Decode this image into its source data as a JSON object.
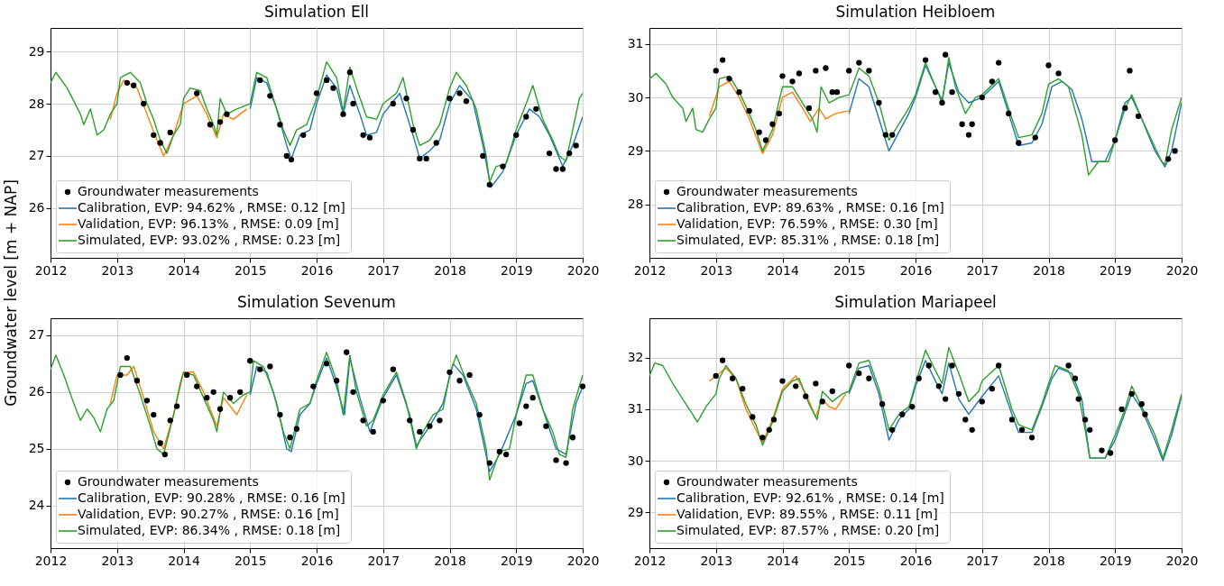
{
  "chart_data": [
    {
      "type": "line",
      "title": "Simulation Ell",
      "ylabel": "Groundwater level [m + NAP]",
      "xlim": [
        2012,
        2020
      ],
      "xticks": [
        2012,
        2013,
        2014,
        2015,
        2016,
        2017,
        2018,
        2019,
        2020
      ],
      "ylim": [
        25.05,
        29.45
      ],
      "yticks": [
        26,
        27,
        28,
        29
      ],
      "grid": true,
      "legend": "bottom left",
      "series": [
        {
          "name": "Groundwater measurements",
          "type": "scatter",
          "marker": "circle",
          "color": "#000000",
          "x": [
            2013.15,
            2013.25,
            2013.4,
            2013.55,
            2013.65,
            2013.8,
            2014.2,
            2014.4,
            2014.55,
            2014.65,
            2015.15,
            2015.3,
            2015.45,
            2015.55,
            2015.62,
            2015.8,
            2016.0,
            2016.15,
            2016.25,
            2016.4,
            2016.5,
            2016.55,
            2016.7,
            2016.8,
            2017.15,
            2017.35,
            2017.45,
            2017.55,
            2017.65,
            2017.8,
            2018.0,
            2018.15,
            2018.25,
            2018.5,
            2018.6,
            2018.8,
            2019.0,
            2019.15,
            2019.3,
            2019.5,
            2019.6,
            2019.7,
            2019.8,
            2019.9
          ],
          "values": [
            28.4,
            28.35,
            28.0,
            27.4,
            27.25,
            27.45,
            28.2,
            27.6,
            27.65,
            27.8,
            28.45,
            28.15,
            27.6,
            27.0,
            26.93,
            27.4,
            28.2,
            28.45,
            28.3,
            27.8,
            28.6,
            28.0,
            27.4,
            27.35,
            28.0,
            28.1,
            27.5,
            26.95,
            26.95,
            27.25,
            28.1,
            28.2,
            28.05,
            27.0,
            26.45,
            26.8,
            27.4,
            27.75,
            27.9,
            27.05,
            26.75,
            26.75,
            27.05,
            27.2
          ]
        },
        {
          "name": "Calibration, EVP: 94.62% , RMSE: 0.12 [m]",
          "color": "#1f77b4",
          "x": [
            2015.0,
            2015.1,
            2015.25,
            2015.4,
            2015.55,
            2015.62,
            2015.75,
            2015.9,
            2016.0,
            2016.15,
            2016.3,
            2016.4,
            2016.5,
            2016.65,
            2016.75,
            2016.9,
            2017.0,
            2017.25,
            2017.45,
            2017.55,
            2017.7,
            2017.85,
            2018.0,
            2018.15,
            2018.35,
            2018.5,
            2018.62,
            2018.8,
            2019.0,
            2019.2,
            2019.35,
            2019.5,
            2019.7,
            2019.85,
            2020.0
          ],
          "values": [
            27.9,
            28.5,
            28.4,
            27.9,
            27.2,
            26.95,
            27.4,
            27.5,
            28.0,
            28.55,
            28.3,
            27.8,
            28.35,
            27.8,
            27.4,
            27.45,
            27.8,
            28.2,
            27.4,
            26.95,
            27.1,
            27.3,
            28.0,
            28.35,
            28.05,
            27.2,
            26.4,
            26.7,
            27.4,
            27.9,
            27.75,
            27.4,
            26.8,
            27.2,
            27.75
          ]
        },
        {
          "name": "Validation, EVP: 96.13% , RMSE: 0.09 [m]",
          "color": "#ff7f0e",
          "x": [
            2012.9,
            2013.0,
            2013.1,
            2013.3,
            2013.45,
            2013.6,
            2013.7,
            2013.85,
            2014.0,
            2014.2,
            2014.35,
            2014.5,
            2014.6,
            2014.75,
            2014.95
          ],
          "values": [
            27.7,
            28.2,
            28.45,
            28.3,
            27.8,
            27.3,
            27.0,
            27.4,
            28.0,
            28.15,
            27.8,
            27.35,
            27.8,
            27.7,
            27.9
          ]
        },
        {
          "name": "Simulated, EVP: 93.02% , RMSE: 0.23 [m]",
          "color": "#2ca02c",
          "x": [
            2012.0,
            2012.08,
            2012.25,
            2012.35,
            2012.45,
            2012.5,
            2012.6,
            2012.7,
            2012.8,
            2012.9,
            2013.0,
            2013.05,
            2013.2,
            2013.35,
            2013.45,
            2013.55,
            2013.65,
            2013.75,
            2013.85,
            2013.95,
            2014.0,
            2014.1,
            2014.25,
            2014.35,
            2014.45,
            2014.5,
            2014.55,
            2014.65,
            2014.8,
            2015.0,
            2015.1,
            2015.25,
            2015.35,
            2015.5,
            2015.6,
            2015.7,
            2015.85,
            2016.0,
            2016.15,
            2016.3,
            2016.4,
            2016.5,
            2016.6,
            2016.75,
            2016.9,
            2017.0,
            2017.2,
            2017.3,
            2017.45,
            2017.55,
            2017.7,
            2017.85,
            2018.0,
            2018.1,
            2018.25,
            2018.4,
            2018.55,
            2018.6,
            2018.7,
            2018.85,
            2019.0,
            2019.15,
            2019.25,
            2019.4,
            2019.55,
            2019.65,
            2019.75,
            2019.85,
            2019.95,
            2020.0
          ],
          "values": [
            28.4,
            28.6,
            28.3,
            28.05,
            27.8,
            27.6,
            27.9,
            27.4,
            27.5,
            27.8,
            28.0,
            28.5,
            28.6,
            28.4,
            28.0,
            27.7,
            27.3,
            27.05,
            27.4,
            27.6,
            28.1,
            28.3,
            28.25,
            27.9,
            27.6,
            27.4,
            28.1,
            27.8,
            27.9,
            28.0,
            28.6,
            28.5,
            28.1,
            27.5,
            27.2,
            27.5,
            27.6,
            28.1,
            28.8,
            28.5,
            27.85,
            28.7,
            28.3,
            27.75,
            27.7,
            28.0,
            28.2,
            28.5,
            27.6,
            27.2,
            27.3,
            27.6,
            28.3,
            28.6,
            28.35,
            27.9,
            27.0,
            26.5,
            26.8,
            26.85,
            27.5,
            28.0,
            28.35,
            27.7,
            27.3,
            27.0,
            26.9,
            27.5,
            28.1,
            28.2
          ]
        }
      ]
    },
    {
      "type": "line",
      "title": "Simulation Heibloem",
      "xlim": [
        2012,
        2020
      ],
      "xticks": [
        2012,
        2013,
        2014,
        2015,
        2016,
        2017,
        2018,
        2019,
        2020
      ],
      "ylim": [
        27.0,
        31.3
      ],
      "yticks": [
        28,
        29,
        30,
        31
      ],
      "grid": true,
      "legend": "bottom left",
      "series": [
        {
          "name": "Groundwater measurements",
          "type": "scatter",
          "marker": "circle",
          "color": "#000000",
          "x": [
            2013.0,
            2013.1,
            2013.2,
            2013.35,
            2013.5,
            2013.65,
            2013.75,
            2013.85,
            2013.95,
            2014.0,
            2014.15,
            2014.25,
            2014.4,
            2014.5,
            2014.65,
            2014.75,
            2014.82,
            2015.0,
            2015.15,
            2015.3,
            2015.45,
            2015.55,
            2015.65,
            2016.15,
            2016.3,
            2016.4,
            2016.45,
            2016.55,
            2016.7,
            2016.8,
            2016.85,
            2017.0,
            2017.15,
            2017.25,
            2017.4,
            2017.55,
            2017.8,
            2018.0,
            2018.15,
            2019.0,
            2019.15,
            2019.22,
            2019.35,
            2019.8,
            2019.9
          ],
          "values": [
            30.5,
            30.7,
            30.35,
            30.1,
            29.75,
            29.35,
            29.2,
            29.5,
            29.7,
            30.4,
            30.3,
            30.45,
            29.8,
            30.5,
            30.55,
            30.1,
            30.1,
            30.5,
            30.65,
            30.5,
            29.9,
            29.3,
            29.3,
            30.7,
            30.1,
            29.9,
            30.8,
            30.1,
            29.5,
            29.3,
            29.5,
            30.0,
            30.3,
            30.65,
            29.7,
            29.15,
            29.25,
            30.6,
            30.45,
            29.2,
            29.8,
            30.5,
            29.65,
            28.85,
            29.0
          ]
        },
        {
          "name": "Calibration, EVP: 89.63% , RMSE: 0.16 [m]",
          "color": "#1f77b4",
          "x": [
            2015.0,
            2015.15,
            2015.3,
            2015.45,
            2015.6,
            2015.75,
            2015.9,
            2016.0,
            2016.15,
            2016.3,
            2016.4,
            2016.5,
            2016.65,
            2016.8,
            2017.0,
            2017.25,
            2017.45,
            2017.55,
            2017.75,
            2017.9,
            2018.05,
            2018.2,
            2018.35,
            2018.5,
            2018.65,
            2018.85,
            2019.0,
            2019.15,
            2019.25,
            2019.4,
            2019.6,
            2019.75,
            2019.85,
            2020.0
          ],
          "values": [
            29.7,
            30.35,
            30.2,
            29.6,
            29.0,
            29.35,
            29.7,
            30.0,
            30.6,
            30.2,
            29.95,
            30.65,
            30.1,
            29.9,
            30.0,
            30.3,
            29.5,
            29.1,
            29.15,
            29.5,
            30.2,
            30.3,
            30.15,
            29.6,
            28.8,
            28.8,
            29.2,
            29.9,
            30.0,
            29.6,
            29.0,
            28.7,
            29.0,
            29.9
          ]
        },
        {
          "name": "Validation, EVP: 76.59% , RMSE: 0.30 [m]",
          "color": "#ff7f0e",
          "x": [
            2012.9,
            2013.05,
            2013.2,
            2013.35,
            2013.5,
            2013.7,
            2013.85,
            2014.0,
            2014.15,
            2014.3,
            2014.42,
            2014.55,
            2014.65,
            2014.8,
            2015.0
          ],
          "values": [
            29.65,
            30.2,
            30.3,
            30.0,
            29.6,
            28.95,
            29.3,
            30.0,
            30.1,
            29.8,
            29.55,
            29.8,
            29.6,
            29.7,
            29.75
          ]
        },
        {
          "name": "Simulated, EVP: 85.31% , RMSE: 0.18 [m]",
          "color": "#2ca02c",
          "x": [
            2012.0,
            2012.1,
            2012.25,
            2012.35,
            2012.5,
            2012.55,
            2012.65,
            2012.7,
            2012.8,
            2012.9,
            2013.0,
            2013.05,
            2013.2,
            2013.35,
            2013.5,
            2013.6,
            2013.7,
            2013.85,
            2014.0,
            2014.15,
            2014.3,
            2014.45,
            2014.52,
            2014.58,
            2014.7,
            2014.85,
            2015.0,
            2015.15,
            2015.3,
            2015.45,
            2015.6,
            2015.75,
            2015.9,
            2016.0,
            2016.15,
            2016.3,
            2016.4,
            2016.5,
            2016.6,
            2016.75,
            2016.9,
            2017.0,
            2017.25,
            2017.45,
            2017.55,
            2017.75,
            2017.9,
            2018.0,
            2018.15,
            2018.3,
            2018.5,
            2018.6,
            2018.75,
            2018.9,
            2019.0,
            2019.15,
            2019.25,
            2019.4,
            2019.55,
            2019.7,
            2019.75,
            2019.85,
            2020.0
          ],
          "values": [
            30.35,
            30.45,
            30.25,
            30.0,
            29.8,
            29.55,
            29.8,
            29.4,
            29.35,
            29.6,
            29.8,
            30.35,
            30.4,
            30.1,
            29.7,
            29.4,
            29.0,
            29.4,
            30.2,
            30.2,
            29.9,
            29.6,
            29.35,
            30.2,
            29.9,
            30.0,
            30.05,
            30.55,
            30.4,
            29.9,
            29.2,
            29.5,
            29.8,
            30.05,
            30.65,
            30.2,
            29.9,
            30.75,
            30.2,
            29.7,
            30.0,
            30.05,
            30.35,
            29.6,
            29.25,
            29.3,
            29.7,
            30.25,
            30.35,
            30.2,
            29.3,
            28.55,
            28.8,
            28.8,
            29.2,
            29.8,
            30.05,
            29.6,
            29.2,
            28.8,
            28.75,
            29.4,
            30.0
          ]
        }
      ]
    },
    {
      "type": "line",
      "title": "Simulation Sevenum",
      "xlim": [
        2012,
        2020
      ],
      "xticks": [
        2012,
        2013,
        2014,
        2015,
        2016,
        2017,
        2018,
        2019,
        2020
      ],
      "ylim": [
        23.25,
        27.3
      ],
      "yticks": [
        24,
        25,
        26,
        27
      ],
      "grid": true,
      "legend": "bottom left",
      "series": [
        {
          "name": "Groundwater measurements",
          "type": "scatter",
          "marker": "circle",
          "color": "#000000",
          "x": [
            2013.05,
            2013.15,
            2013.3,
            2013.45,
            2013.55,
            2013.65,
            2013.72,
            2013.8,
            2013.9,
            2014.05,
            2014.2,
            2014.35,
            2014.45,
            2014.55,
            2014.7,
            2014.85,
            2015.0,
            2015.15,
            2015.3,
            2015.45,
            2015.6,
            2015.7,
            2015.95,
            2016.15,
            2016.3,
            2016.45,
            2016.55,
            2016.7,
            2016.85,
            2017.0,
            2017.15,
            2017.4,
            2017.55,
            2017.7,
            2017.85,
            2018.0,
            2018.15,
            2018.3,
            2018.45,
            2018.6,
            2018.75,
            2018.85,
            2019.05,
            2019.15,
            2019.25,
            2019.45,
            2019.6,
            2019.75,
            2019.85,
            2020.0
          ],
          "values": [
            26.3,
            26.6,
            26.2,
            25.85,
            25.6,
            25.1,
            24.9,
            25.5,
            25.75,
            26.3,
            26.1,
            25.9,
            26.0,
            25.7,
            25.9,
            26.0,
            26.55,
            26.4,
            26.45,
            25.6,
            25.2,
            25.35,
            26.1,
            26.5,
            26.2,
            26.7,
            26.0,
            25.5,
            25.3,
            25.85,
            26.4,
            25.5,
            25.3,
            25.4,
            25.5,
            26.35,
            26.2,
            26.3,
            25.6,
            24.75,
            24.95,
            24.9,
            25.45,
            25.75,
            25.9,
            25.4,
            24.8,
            24.75,
            25.2,
            26.1
          ]
        },
        {
          "name": "Calibration, EVP: 90.28% , RMSE: 0.16 [m]",
          "color": "#1f77b4",
          "x": [
            2015.0,
            2015.1,
            2015.25,
            2015.4,
            2015.55,
            2015.62,
            2015.75,
            2015.9,
            2016.0,
            2016.15,
            2016.3,
            2016.42,
            2016.5,
            2016.65,
            2016.8,
            2017.0,
            2017.2,
            2017.4,
            2017.5,
            2017.7,
            2017.9,
            2018.05,
            2018.2,
            2018.4,
            2018.6,
            2018.75,
            2019.0,
            2019.15,
            2019.25,
            2019.4,
            2019.6,
            2019.75,
            2019.9,
            2020.0
          ],
          "values": [
            25.95,
            26.45,
            26.35,
            25.8,
            25.0,
            24.95,
            25.6,
            25.8,
            26.15,
            26.6,
            26.1,
            25.6,
            26.6,
            25.9,
            25.3,
            25.9,
            26.3,
            25.6,
            25.05,
            25.4,
            25.8,
            26.5,
            26.3,
            25.7,
            24.6,
            24.9,
            25.6,
            26.15,
            26.2,
            25.7,
            25.0,
            24.9,
            25.8,
            26.1
          ]
        },
        {
          "name": "Validation, EVP: 90.27% , RMSE: 0.16 [m]",
          "color": "#ff7f0e",
          "x": [
            2012.9,
            2013.0,
            2013.15,
            2013.25,
            2013.4,
            2013.55,
            2013.7,
            2013.85,
            2014.0,
            2014.15,
            2014.3,
            2014.5,
            2014.6,
            2014.8,
            2014.95
          ],
          "values": [
            25.8,
            26.3,
            26.3,
            26.45,
            25.9,
            25.3,
            25.0,
            25.6,
            26.35,
            26.35,
            26.0,
            25.4,
            25.9,
            25.6,
            25.95
          ]
        },
        {
          "name": "Simulated, EVP: 86.34% , RMSE: 0.18 [m]",
          "color": "#2ca02c",
          "x": [
            2012.0,
            2012.08,
            2012.2,
            2012.35,
            2012.45,
            2012.55,
            2012.65,
            2012.75,
            2012.85,
            2012.95,
            2013.05,
            2013.2,
            2013.35,
            2013.5,
            2013.6,
            2013.7,
            2013.85,
            2013.95,
            2014.0,
            2014.15,
            2014.3,
            2014.45,
            2014.5,
            2014.6,
            2014.75,
            2014.9,
            2015.0,
            2015.05,
            2015.2,
            2015.35,
            2015.5,
            2015.6,
            2015.75,
            2015.9,
            2016.0,
            2016.15,
            2016.3,
            2016.4,
            2016.5,
            2016.6,
            2016.75,
            2016.85,
            2017.0,
            2017.2,
            2017.35,
            2017.5,
            2017.6,
            2017.75,
            2017.9,
            2018.0,
            2018.1,
            2018.25,
            2018.4,
            2018.55,
            2018.6,
            2018.75,
            2018.9,
            2019.0,
            2019.15,
            2019.25,
            2019.4,
            2019.55,
            2019.65,
            2019.75,
            2019.85,
            2020.0
          ],
          "values": [
            26.4,
            26.65,
            26.3,
            25.8,
            25.5,
            25.7,
            25.55,
            25.3,
            25.7,
            25.85,
            26.45,
            26.45,
            25.95,
            25.4,
            25.0,
            24.9,
            25.6,
            26.15,
            26.35,
            26.3,
            25.9,
            25.5,
            25.3,
            26.0,
            25.8,
            25.95,
            26.0,
            26.55,
            26.45,
            26.0,
            25.3,
            25.0,
            25.7,
            25.8,
            26.2,
            26.7,
            26.2,
            25.6,
            26.65,
            26.0,
            25.4,
            25.5,
            25.95,
            26.35,
            25.8,
            25.0,
            25.3,
            25.6,
            25.7,
            26.3,
            26.65,
            26.2,
            25.8,
            25.0,
            24.45,
            24.95,
            25.0,
            25.6,
            26.3,
            26.3,
            25.7,
            25.3,
            24.9,
            24.85,
            25.7,
            26.3
          ]
        }
      ]
    },
    {
      "type": "line",
      "title": "Simulation Mariapeel",
      "xlim": [
        2012,
        2020
      ],
      "xticks": [
        2012,
        2013,
        2014,
        2015,
        2016,
        2017,
        2018,
        2019,
        2020
      ],
      "ylim": [
        28.3,
        32.77
      ],
      "yticks": [
        29,
        30,
        31,
        32
      ],
      "grid": true,
      "legend": "bottom left",
      "series": [
        {
          "name": "Groundwater measurements",
          "type": "scatter",
          "marker": "circle",
          "color": "#000000",
          "x": [
            2013.0,
            2013.1,
            2013.25,
            2013.4,
            2013.55,
            2013.7,
            2013.8,
            2013.87,
            2014.0,
            2014.2,
            2014.35,
            2014.5,
            2014.6,
            2014.75,
            2015.0,
            2015.15,
            2015.3,
            2015.5,
            2015.65,
            2015.8,
            2015.95,
            2016.05,
            2016.2,
            2016.35,
            2016.45,
            2016.55,
            2016.65,
            2016.75,
            2016.85,
            2017.0,
            2017.15,
            2017.25,
            2017.45,
            2017.6,
            2017.75,
            2018.3,
            2018.4,
            2018.45,
            2018.55,
            2018.62,
            2018.8,
            2018.93,
            2019.1,
            2019.25,
            2019.4,
            2019.45
          ],
          "values": [
            31.65,
            31.95,
            31.6,
            31.4,
            30.85,
            30.45,
            30.6,
            30.8,
            31.55,
            31.45,
            31.25,
            31.5,
            31.15,
            31.35,
            31.85,
            31.7,
            31.6,
            31.1,
            30.6,
            30.9,
            31.05,
            31.6,
            31.85,
            31.45,
            31.2,
            31.85,
            31.3,
            30.8,
            30.6,
            31.15,
            31.4,
            31.85,
            30.8,
            30.6,
            30.45,
            31.85,
            31.6,
            31.2,
            30.8,
            30.6,
            30.2,
            30.15,
            31.0,
            31.3,
            31.1,
            30.9
          ]
        },
        {
          "name": "Calibration, EVP: 92.61% , RMSE: 0.14 [m]",
          "color": "#1f77b4",
          "x": [
            2015.0,
            2015.15,
            2015.3,
            2015.45,
            2015.6,
            2015.75,
            2015.9,
            2016.0,
            2016.15,
            2016.3,
            2016.4,
            2016.5,
            2016.65,
            2016.8,
            2017.0,
            2017.25,
            2017.45,
            2017.55,
            2017.75,
            2017.9,
            2018.05,
            2018.15,
            2018.35,
            2018.5,
            2018.62,
            2018.85,
            2019.0,
            2019.25,
            2019.4,
            2019.6,
            2019.72,
            2019.85,
            2020.0
          ],
          "values": [
            31.3,
            31.8,
            31.85,
            31.3,
            30.4,
            30.8,
            31.0,
            31.45,
            31.95,
            31.55,
            31.3,
            31.9,
            31.2,
            30.9,
            31.25,
            31.65,
            30.9,
            30.55,
            30.55,
            31.05,
            31.6,
            31.8,
            31.7,
            31.2,
            30.05,
            30.05,
            30.4,
            31.3,
            31.0,
            30.4,
            30.0,
            30.5,
            31.25
          ]
        },
        {
          "name": "Validation, EVP: 89.55% , RMSE: 0.11 [m]",
          "color": "#ff7f0e",
          "x": [
            2012.9,
            2013.05,
            2013.15,
            2013.3,
            2013.45,
            2013.6,
            2013.7,
            2013.85,
            2014.0,
            2014.2,
            2014.35,
            2014.5,
            2014.6,
            2014.7,
            2014.8,
            2014.95
          ],
          "values": [
            31.55,
            31.7,
            31.8,
            31.6,
            31.0,
            30.6,
            30.35,
            30.8,
            31.4,
            31.65,
            31.3,
            30.85,
            31.2,
            31.05,
            31.0,
            31.3
          ]
        },
        {
          "name": "Simulated, EVP: 87.57% , RMSE: 0.20 [m]",
          "color": "#2ca02c",
          "x": [
            2012.0,
            2012.08,
            2012.2,
            2012.35,
            2012.45,
            2012.55,
            2012.65,
            2012.72,
            2012.85,
            2013.0,
            2013.05,
            2013.15,
            2013.3,
            2013.45,
            2013.6,
            2013.7,
            2013.85,
            2014.0,
            2014.15,
            2014.25,
            2014.4,
            2014.52,
            2014.6,
            2014.75,
            2014.9,
            2015.0,
            2015.15,
            2015.3,
            2015.45,
            2015.6,
            2015.75,
            2015.9,
            2016.0,
            2016.15,
            2016.3,
            2016.4,
            2016.5,
            2016.65,
            2016.8,
            2016.95,
            2017.0,
            2017.25,
            2017.45,
            2017.55,
            2017.75,
            2017.9,
            2018.0,
            2018.1,
            2018.3,
            2018.45,
            2018.55,
            2018.62,
            2018.75,
            2018.85,
            2019.0,
            2019.15,
            2019.25,
            2019.4,
            2019.6,
            2019.72,
            2019.85,
            2020.0
          ],
          "values": [
            31.65,
            31.9,
            31.85,
            31.5,
            31.3,
            31.1,
            30.9,
            30.75,
            31.05,
            31.3,
            31.6,
            31.85,
            31.6,
            31.1,
            30.7,
            30.3,
            30.75,
            31.35,
            31.55,
            31.6,
            31.1,
            30.8,
            31.35,
            31.15,
            31.3,
            31.35,
            31.9,
            31.95,
            31.4,
            30.6,
            30.9,
            31.05,
            31.5,
            32.15,
            31.75,
            31.5,
            32.2,
            31.7,
            31.15,
            31.35,
            31.55,
            31.85,
            31.0,
            30.7,
            30.6,
            31.1,
            31.5,
            31.85,
            31.75,
            31.3,
            30.6,
            30.05,
            30.05,
            30.05,
            30.5,
            31.0,
            31.45,
            31.05,
            30.5,
            30.05,
            30.6,
            31.3
          ]
        }
      ]
    }
  ]
}
